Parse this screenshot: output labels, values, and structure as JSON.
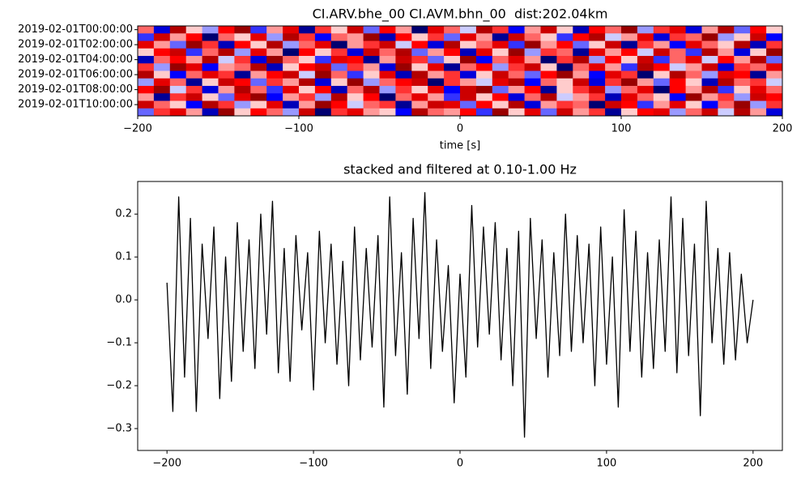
{
  "chart_data": [
    {
      "type": "heatmap",
      "title": "CI.ARV.bhe_00 CI.AVM.bhn_00  dist:202.04km",
      "xlabel": "time [s]",
      "categories": [
        "2019-02-01T00:00:00",
        null,
        "2019-02-01T02:00:00",
        null,
        "2019-02-01T04:00:00",
        null,
        "2019-02-01T06:00:00",
        null,
        "2019-02-01T08:00:00",
        null,
        "2019-02-01T10:00:00",
        null
      ],
      "values": [
        [
          0.3,
          -0.6,
          0.8,
          0.1,
          -0.2,
          0.5,
          0.9,
          -0.4,
          0.2,
          0.6,
          -0.8,
          0.4,
          0.1,
          0.7,
          -0.3,
          0.5,
          0.2,
          -0.9,
          0.6,
          0.3,
          -0.1,
          0.8,
          0.4,
          -0.5,
          0.2,
          0.7,
          0.1,
          -0.7,
          0.5,
          0.3,
          0.9,
          -0.2,
          0.4,
          0.6,
          -0.6,
          0.2,
          0.8,
          -0.3,
          0.5,
          0.1
        ],
        [
          -0.4,
          0.7,
          0.2,
          0.5,
          -0.9,
          0.3,
          0.1,
          0.6,
          -0.2,
          0.8,
          0.4,
          -0.5,
          0.3,
          0.2,
          0.9,
          -0.7,
          0.5,
          0.1,
          0.4,
          -0.3,
          0.6,
          0.2,
          -0.8,
          0.7,
          0.3,
          0.1,
          -0.4,
          0.5,
          0.8,
          -0.1,
          0.2,
          0.6,
          -0.6,
          0.4,
          0.3,
          0.9,
          -0.2,
          0.1,
          0.7,
          -0.5
        ],
        [
          0.6,
          0.2,
          -0.3,
          0.9,
          0.4,
          -0.7,
          0.5,
          0.1,
          0.8,
          -0.2,
          0.3,
          0.6,
          -0.9,
          0.2,
          0.4,
          0.7,
          -0.1,
          0.5,
          -0.6,
          0.8,
          0.1,
          0.3,
          0.6,
          -0.4,
          0.9,
          0.2,
          0.5,
          -0.3,
          0.1,
          0.7,
          -0.8,
          0.4,
          0.2,
          -0.5,
          0.6,
          0.3,
          0.1,
          0.8,
          -0.7,
          0.4
        ],
        [
          0.1,
          0.5,
          0.7,
          -0.4,
          0.3,
          0.8,
          -0.2,
          0.6,
          0.2,
          -0.9,
          0.5,
          0.1,
          0.4,
          -0.6,
          0.7,
          0.3,
          0.8,
          -0.3,
          0.2,
          0.5,
          -0.7,
          0.6,
          0.1,
          0.9,
          -0.2,
          0.4,
          0.3,
          -0.8,
          0.6,
          0.2,
          0.5,
          -0.1,
          0.7,
          0.3,
          -0.4,
          0.8,
          0.2,
          -0.6,
          0.1,
          0.9
        ],
        [
          -0.7,
          0.3,
          0.5,
          0.2,
          0.8,
          -0.1,
          0.4,
          -0.6,
          0.9,
          0.3,
          0.1,
          -0.4,
          0.6,
          0.5,
          -0.8,
          0.2,
          0.7,
          0.4,
          -0.3,
          0.1,
          0.9,
          -0.5,
          0.3,
          0.6,
          0.2,
          -0.9,
          0.4,
          0.8,
          -0.2,
          0.5,
          0.1,
          0.7,
          -0.4,
          0.3,
          0.6,
          -0.1,
          0.5,
          0.2,
          0.8,
          -0.3
        ],
        [
          0.4,
          -0.2,
          0.9,
          0.6,
          -0.5,
          0.2,
          0.3,
          0.8,
          -0.7,
          0.1,
          0.5,
          0.7,
          -0.3,
          0.4,
          0.2,
          -0.6,
          0.9,
          0.1,
          0.6,
          -0.8,
          0.3,
          0.5,
          -0.2,
          0.4,
          0.7,
          0.1,
          -0.9,
          0.3,
          0.6,
          0.2,
          -0.4,
          0.8,
          0.5,
          -0.1,
          0.2,
          0.7,
          -0.6,
          0.4,
          0.3,
          0.6
        ],
        [
          0.8,
          0.1,
          -0.5,
          0.3,
          0.6,
          0.4,
          -0.8,
          0.2,
          0.5,
          0.7,
          -0.1,
          0.9,
          0.3,
          -0.4,
          0.1,
          0.6,
          -0.7,
          0.8,
          0.2,
          0.4,
          -0.6,
          0.1,
          0.7,
          0.3,
          -0.3,
          0.5,
          0.9,
          0.2,
          -0.5,
          0.6,
          0.4,
          -0.9,
          0.1,
          0.8,
          0.3,
          -0.2,
          0.6,
          0.5,
          -0.8,
          0.2
        ],
        [
          -0.2,
          0.6,
          0.3,
          -0.8,
          0.1,
          0.7,
          0.5,
          -0.3,
          0.4,
          0.2,
          0.8,
          -0.6,
          0.1,
          0.9,
          -0.2,
          0.3,
          0.5,
          0.7,
          -0.9,
          0.4,
          0.2,
          -0.1,
          0.6,
          0.8,
          -0.5,
          0.3,
          0.1,
          0.7,
          -0.6,
          0.4,
          0.9,
          0.2,
          -0.3,
          0.5,
          0.1,
          -0.7,
          0.8,
          0.3,
          0.4,
          -0.1
        ],
        [
          0.5,
          0.9,
          -0.1,
          0.4,
          -0.6,
          0.2,
          0.8,
          0.3,
          -0.4,
          0.6,
          0.1,
          0.5,
          -0.7,
          0.3,
          0.8,
          -0.2,
          0.4,
          0.1,
          0.6,
          -0.5,
          0.7,
          0.9,
          -0.3,
          0.2,
          0.5,
          -0.8,
          0.1,
          0.4,
          0.7,
          -0.2,
          0.3,
          0.6,
          -0.9,
          0.5,
          0.2,
          0.8,
          -0.4,
          0.1,
          0.6,
          0.3
        ],
        [
          0.2,
          -0.8,
          0.4,
          0.7,
          0.1,
          -0.3,
          0.6,
          0.9,
          -0.5,
          0.2,
          0.4,
          -0.2,
          0.8,
          0.1,
          0.5,
          -0.9,
          0.3,
          0.6,
          0.2,
          -0.4,
          0.7,
          0.1,
          0.5,
          -0.6,
          0.3,
          0.8,
          -0.1,
          0.2,
          0.4,
          -0.7,
          0.6,
          0.3,
          0.1,
          -0.5,
          0.9,
          0.2,
          0.4,
          -0.2,
          0.7,
          0.5
        ],
        [
          0.7,
          0.3,
          0.1,
          -0.5,
          0.8,
          0.4,
          -0.2,
          0.1,
          0.6,
          -0.7,
          0.2,
          0.9,
          0.5,
          -0.1,
          0.3,
          0.4,
          -0.8,
          0.2,
          0.7,
          0.6,
          -0.3,
          0.5,
          0.1,
          0.8,
          -0.6,
          0.2,
          0.4,
          0.3,
          -0.9,
          0.7,
          0.5,
          -0.4,
          0.2,
          0.6,
          0.1,
          -0.5,
          0.3,
          0.9,
          -0.2,
          0.4
        ],
        [
          -0.3,
          0.4,
          0.6,
          0.2,
          -0.7,
          0.9,
          0.1,
          0.5,
          0.3,
          -0.2,
          0.7,
          -0.9,
          0.4,
          0.6,
          0.2,
          0.1,
          -0.5,
          0.8,
          0.3,
          0.2,
          0.5,
          -0.4,
          0.9,
          0.1,
          0.6,
          -0.3,
          0.7,
          0.2,
          0.4,
          -0.8,
          0.1,
          0.5,
          0.6,
          -0.2,
          0.3,
          0.7,
          -0.1,
          0.8,
          0.2,
          -0.6
        ]
      ],
      "colormap": "seismic",
      "clim": [
        -1,
        1
      ],
      "xlim": [
        -200,
        200
      ],
      "xticks": [
        {
          "value": -200,
          "label": "−200"
        },
        {
          "value": -100,
          "label": "−100"
        },
        0,
        100,
        200
      ]
    },
    {
      "type": "line",
      "title": "stacked and filtered at 0.10-1.00 Hz",
      "x": [
        -200,
        -196,
        -192,
        -188,
        -184,
        -180,
        -176,
        -172,
        -168,
        -164,
        -160,
        -156,
        -152,
        -148,
        -144,
        -140,
        -136,
        -132,
        -128,
        -124,
        -120,
        -116,
        -112,
        -108,
        -104,
        -100,
        -96,
        -92,
        -88,
        -84,
        -80,
        -76,
        -72,
        -68,
        -64,
        -60,
        -56,
        -52,
        -48,
        -44,
        -40,
        -36,
        -32,
        -28,
        -24,
        -20,
        -16,
        -12,
        -8,
        -4,
        0,
        4,
        8,
        12,
        16,
        20,
        24,
        28,
        32,
        36,
        40,
        44,
        48,
        52,
        56,
        60,
        64,
        68,
        72,
        76,
        80,
        84,
        88,
        92,
        96,
        100,
        104,
        108,
        112,
        116,
        120,
        124,
        128,
        132,
        136,
        140,
        144,
        148,
        152,
        156,
        160,
        164,
        168,
        172,
        176,
        180,
        184,
        188,
        192,
        196,
        200
      ],
      "values": [
        0.04,
        -0.26,
        0.24,
        -0.18,
        0.19,
        -0.26,
        0.13,
        -0.09,
        0.17,
        -0.23,
        0.1,
        -0.19,
        0.18,
        -0.12,
        0.14,
        -0.16,
        0.2,
        -0.08,
        0.23,
        -0.17,
        0.12,
        -0.19,
        0.15,
        -0.07,
        0.11,
        -0.21,
        0.16,
        -0.1,
        0.13,
        -0.15,
        0.09,
        -0.2,
        0.17,
        -0.14,
        0.12,
        -0.11,
        0.15,
        -0.25,
        0.24,
        -0.13,
        0.11,
        -0.22,
        0.19,
        -0.09,
        0.25,
        -0.16,
        0.14,
        -0.12,
        0.08,
        -0.24,
        0.06,
        -0.18,
        0.22,
        -0.11,
        0.17,
        -0.08,
        0.18,
        -0.14,
        0.12,
        -0.2,
        0.16,
        -0.32,
        0.19,
        -0.09,
        0.14,
        -0.18,
        0.11,
        -0.13,
        0.2,
        -0.12,
        0.15,
        -0.1,
        0.13,
        -0.2,
        0.17,
        -0.15,
        0.1,
        -0.25,
        0.21,
        -0.12,
        0.16,
        -0.18,
        0.11,
        -0.16,
        0.14,
        -0.12,
        0.24,
        -0.17,
        0.19,
        -0.13,
        0.13,
        -0.27,
        0.23,
        -0.1,
        0.12,
        -0.15,
        0.11,
        -0.14,
        0.06,
        -0.1,
        0.0
      ],
      "color": "#000000",
      "xlim": [
        -220,
        220
      ],
      "xticks": [
        {
          "value": -200,
          "label": "−200"
        },
        {
          "value": -100,
          "label": "−100"
        },
        0,
        100,
        200
      ],
      "ylim": [
        -0.351,
        0.276
      ],
      "yticks": [
        {
          "value": -0.3,
          "label": "−0.3"
        },
        {
          "value": -0.2,
          "label": "−0.2"
        },
        {
          "value": -0.1,
          "label": "−0.1"
        },
        {
          "value": 0,
          "label": "0.0"
        },
        0.1,
        0.2
      ]
    }
  ]
}
